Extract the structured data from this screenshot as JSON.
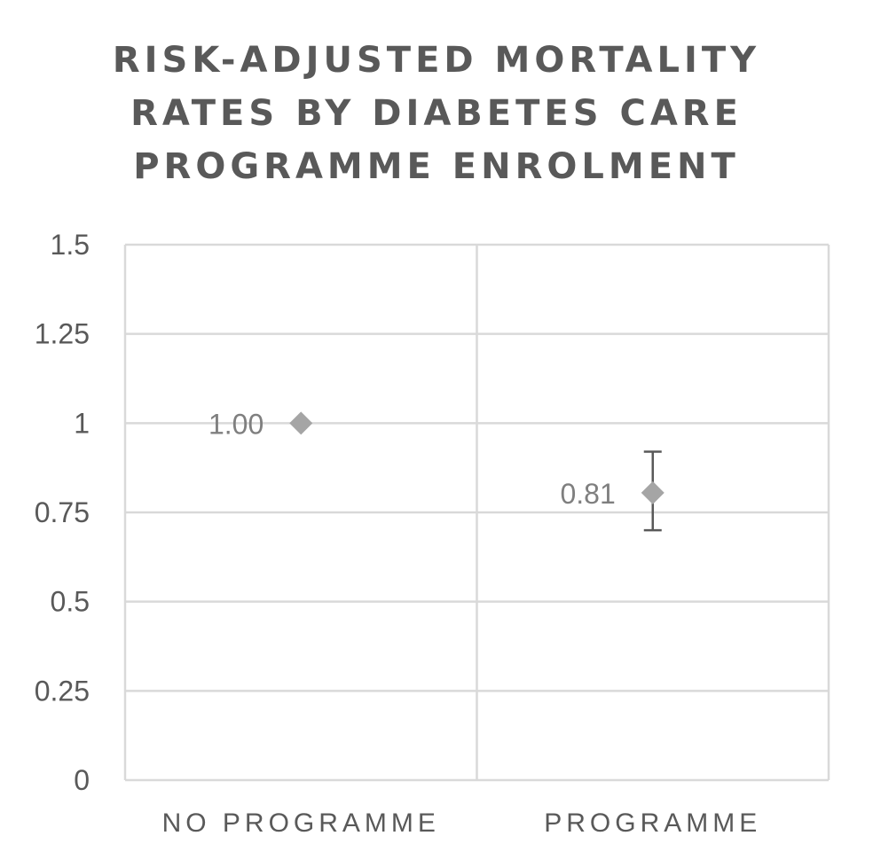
{
  "chart_data": {
    "type": "scatter",
    "title_lines": [
      "RISK-ADJUSTED MORTALITY",
      "RATES BY DIABETES CARE",
      "PROGRAMME ENROLMENT"
    ],
    "categories": [
      "NO PROGRAMME",
      "PROGRAMME"
    ],
    "values": [
      1.0,
      0.805
    ],
    "data_labels": [
      "1.00",
      "0.81"
    ],
    "error_bars": [
      null,
      {
        "low": 0.7,
        "high": 0.92
      }
    ],
    "yticks": [
      "0",
      "0.25",
      "0.5",
      "0.75",
      "1",
      "1.25",
      "1.5"
    ],
    "ylim": [
      0,
      1.5
    ],
    "grid": true,
    "legend": "none",
    "colors": {
      "marker": "#a5a5a5",
      "errorbar": "#595959",
      "grid": "#d9d9d9",
      "text": "#595959",
      "label": "#7f7f7f"
    }
  }
}
